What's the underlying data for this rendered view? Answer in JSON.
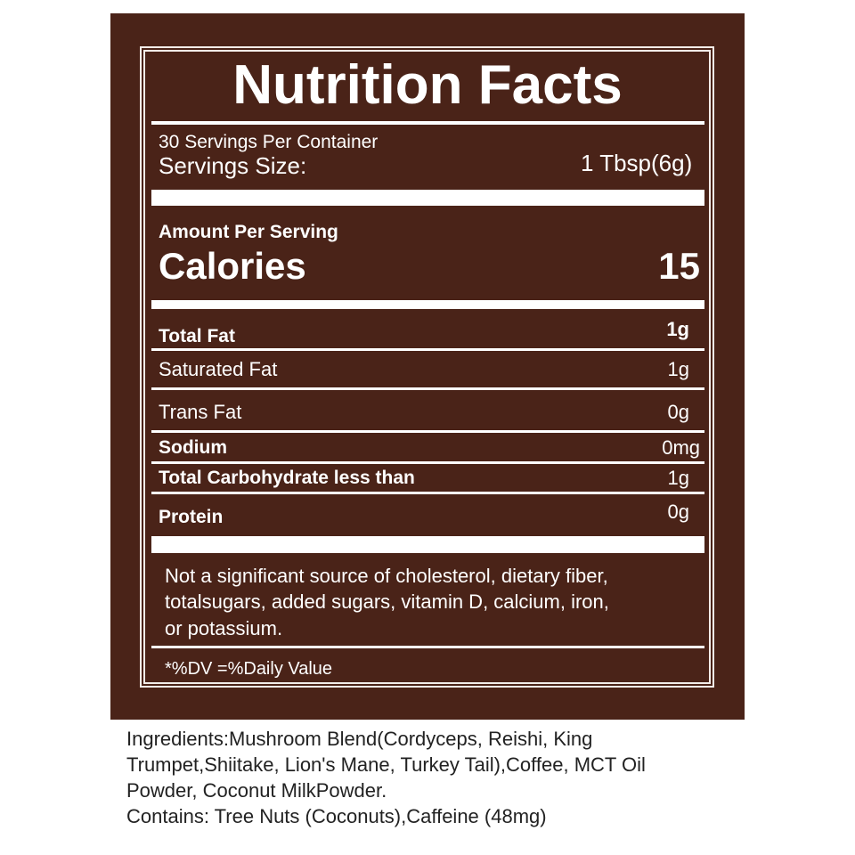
{
  "panel_color": "#4a2318",
  "title": "Nutrition Facts",
  "servings_per_container": "30 Servings Per Container",
  "serving_size_label": "Servings Size:",
  "serving_size_value": "1 Tbsp(6g)",
  "amount_per_serving": "Amount Per Serving",
  "calories_label": "Calories",
  "calories_value": "15",
  "nutrients": [
    {
      "label": "Total Fat",
      "value": "1g"
    },
    {
      "label": "Saturated Fat",
      "value": "1g"
    },
    {
      "label": "Trans Fat",
      "value": "0g"
    },
    {
      "label": "Sodium",
      "value": "0mg"
    },
    {
      "label": "Total Carbohydrate  less than",
      "value": "1g"
    },
    {
      "label": "Protein",
      "value": "0g"
    }
  ],
  "footnote_lines": [
    "Not a significant source of cholesterol, dietary fiber,",
    "totalsugars, added sugars, vitamin D, calcium, iron,",
    "or potassium."
  ],
  "dv_note": "*%DV =%Daily Value",
  "ingredients_lines": [
    "Ingredients:Mushroom Blend(Cordyceps, Reishi, King",
    "Trumpet,Shiitake, Lion's Mane, Turkey Tail),Coffee, MCT Oil",
    "Powder, Coconut MilkPowder.",
    "Contains: Tree Nuts (Coconuts),Caffeine (48mg)"
  ]
}
